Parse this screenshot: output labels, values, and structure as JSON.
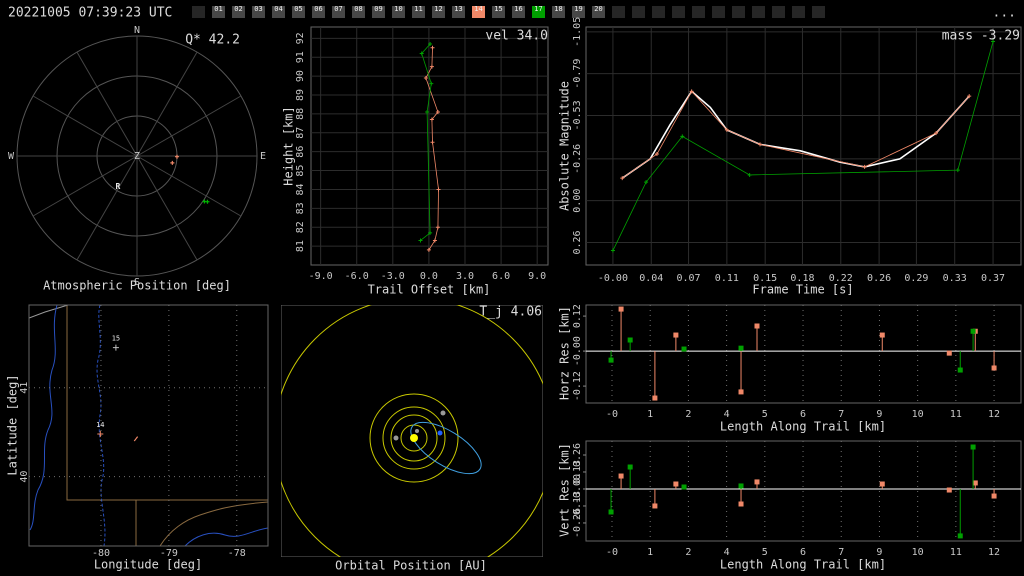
{
  "header": {
    "timestamp": "20221005 07:39:23 UTC",
    "menu": "...",
    "stations": [
      null,
      "01",
      "02",
      "03",
      "04",
      "05",
      "06",
      "07",
      "08",
      "09",
      "10",
      "11",
      "12",
      "13",
      "14",
      "15",
      "16",
      "17",
      "18",
      "19",
      "20",
      null,
      null,
      null,
      null,
      null,
      null,
      null,
      null,
      null,
      null,
      null
    ],
    "station_colors": [
      "#262626",
      "#474747",
      "#474747",
      "#474747",
      "#474747",
      "#474747",
      "#474747",
      "#474747",
      "#474747",
      "#474747",
      "#474747",
      "#474747",
      "#474747",
      "#474747",
      "#f08868",
      "#474747",
      "#474747",
      "#00a000",
      "#474747",
      "#474747",
      "#474747",
      "#262626",
      "#262626",
      "#262626",
      "#262626",
      "#262626",
      "#262626",
      "#262626",
      "#262626",
      "#262626",
      "#262626",
      "#262626"
    ]
  },
  "chart_data": [
    {
      "type": "polar",
      "title": "Atmospheric Position [deg]",
      "annotation": "Q* 42.2",
      "labels": {
        "north": "N",
        "east": "E",
        "south": "S",
        "west": "W",
        "zenith": "Z"
      },
      "radiant": {
        "label": "R",
        "az": 212,
        "zen": 27
      },
      "rlim": [
        0,
        90
      ],
      "rgrid": [
        30,
        60,
        90
      ],
      "series": [
        {
          "color": "#f08868",
          "az": [
            101,
            91
          ],
          "zen": [
            27,
            30
          ]
        },
        {
          "color": "#00b000",
          "az": [
            123,
            124
          ],
          "zen": [
            63,
            61
          ]
        }
      ]
    },
    {
      "type": "line",
      "xlabel": "Trail Offset [km]",
      "ylabel": "Height [km]",
      "annotation": "vel 34.0",
      "xlim": [
        -9.8,
        9.9
      ],
      "ylim": [
        80.0,
        92.6
      ],
      "grid": "solid",
      "xticks": [
        {
          "value": -9,
          "label": "-9.0"
        },
        {
          "value": -6,
          "label": "-6.0"
        },
        {
          "value": -3,
          "label": "-3.0"
        },
        {
          "value": 0,
          "label": "0.0"
        },
        {
          "value": 3,
          "label": "3.0"
        },
        {
          "value": 6,
          "label": "6.0"
        },
        {
          "value": 9,
          "label": "9.0"
        }
      ],
      "yticks": [
        81,
        82,
        83,
        84,
        85,
        86,
        87,
        88,
        89,
        90,
        91,
        92
      ],
      "series": [
        {
          "color": "#f08868",
          "markers": true,
          "x": [
            0.0,
            0.5,
            0.75,
            0.8,
            0.3,
            0.25,
            0.75,
            -0.25,
            0.25,
            0.3
          ],
          "values": [
            80.8,
            81.3,
            82.0,
            84.0,
            86.5,
            87.7,
            88.1,
            89.9,
            90.5,
            91.5
          ]
        },
        {
          "color": "#00a000",
          "markers": true,
          "x": [
            -0.7,
            0.1,
            -0.15,
            0.2,
            -0.6,
            0.1
          ],
          "values": [
            81.3,
            81.7,
            88.1,
            89.6,
            91.2,
            91.7
          ]
        }
      ]
    },
    {
      "type": "line",
      "xlabel": "Frame Time [s]",
      "ylabel": "Absolute Magnitude",
      "annotation": "mass -3.29",
      "xlim": [
        -0.026,
        0.394
      ],
      "ylim": [
        -1.08,
        0.4
      ],
      "y_inverted": true,
      "grid": "solid",
      "xticks": [
        {
          "value": 0,
          "label": "-0.00"
        },
        {
          "value": 0.037,
          "label": "0.04"
        },
        {
          "value": 0.073,
          "label": "0.07"
        },
        0.11,
        {
          "value": 0.147,
          "label": "0.15"
        },
        {
          "value": 0.183,
          "label": "0.18"
        },
        0.22,
        {
          "value": 0.257,
          "label": "0.26"
        },
        {
          "value": 0.293,
          "label": "0.29"
        },
        0.33,
        {
          "value": 0.367,
          "label": "0.37"
        }
      ],
      "yticks": [
        -1.05,
        -0.79,
        -0.53,
        -0.26,
        {
          "value": 0,
          "label": "0.00"
        },
        0.26
      ],
      "series": [
        {
          "color": "#00a000",
          "markers": true,
          "x": [
            0,
            0.032,
            0.067,
            0.132,
            0.333,
            0.367
          ],
          "values": [
            0.31,
            -0.115,
            -0.4,
            -0.16,
            -0.19,
            -0.99
          ]
        },
        {
          "color": "#ffffff",
          "markers": false,
          "x": [
            0.009,
            0.036,
            0.055,
            0.076,
            0.094,
            0.11,
            0.142,
            0.181,
            0.219,
            0.243,
            0.277,
            0.312,
            0.344
          ],
          "values": [
            -0.14,
            -0.26,
            -0.47,
            -0.68,
            -0.58,
            -0.44,
            -0.35,
            -0.31,
            -0.24,
            -0.21,
            -0.26,
            -0.42,
            -0.65
          ]
        },
        {
          "color": "#f08868",
          "markers": true,
          "x": [
            0.009,
            0.0425,
            0.076,
            0.11,
            0.142,
            0.243,
            0.312,
            0.344
          ],
          "values": [
            -0.14,
            -0.29,
            -0.68,
            -0.44,
            -0.35,
            -0.21,
            -0.42,
            -0.65
          ]
        }
      ]
    },
    {
      "type": "map",
      "xlabel": "Longitude [deg]",
      "ylabel": "Latitude [deg]",
      "xlim": [
        -81.06,
        -77.54
      ],
      "ylim": [
        39.22,
        41.93
      ],
      "grid": "dotted",
      "xticks": [
        -80,
        -79,
        -78
      ],
      "yticks": [
        40,
        41
      ],
      "stations": [
        {
          "label": "15",
          "lon": -79.78,
          "lat": 41.45,
          "color": "#c0c0c0"
        },
        {
          "label": "14",
          "lon": -80.01,
          "lat": 40.48,
          "color": "#f08868"
        }
      ],
      "track": {
        "color": "#f08868",
        "lon": [
          -79.51,
          -79.46
        ],
        "lat": [
          40.4,
          40.45
        ]
      }
    },
    {
      "type": "orbit",
      "xlabel": "Orbital Position [AU]",
      "annotation": "T_j 4.06"
    },
    {
      "type": "stem",
      "xlabel": "Length Along Trail [km]",
      "ylabel": "Horz Res [km]",
      "xlim": [
        -0.83,
        13.06
      ],
      "ylim": [
        -0.178,
        0.158
      ],
      "grid": "dotted",
      "xticks": [
        {
          "value": 0,
          "label": "-0"
        },
        {
          "value": 1.22,
          "label": "1"
        },
        {
          "value": 2.44,
          "label": "2"
        },
        {
          "value": 3.66,
          "label": "4"
        },
        {
          "value": 4.88,
          "label": "5"
        },
        {
          "value": 6.1,
          "label": "6"
        },
        {
          "value": 7.32,
          "label": "7"
        },
        {
          "value": 8.54,
          "label": "9"
        },
        {
          "value": 9.76,
          "label": "10"
        },
        {
          "value": 10.98,
          "label": "11"
        },
        {
          "value": 12.2,
          "label": "12"
        }
      ],
      "yticks": [
        0.12,
        {
          "value": 0,
          "label": "-0.00"
        },
        -0.12
      ],
      "series": [
        {
          "color": "#f08868",
          "x": [
            0.29,
            1.37,
            2.04,
            4.12,
            4.63,
            8.63,
            10.77,
            11.6,
            12.2
          ],
          "values": [
            0.144,
            -0.161,
            0.055,
            -0.14,
            0.086,
            0.055,
            -0.007,
            0.068,
            -0.058
          ]
        },
        {
          "color": "#00a000",
          "x": [
            -0.03,
            0.58,
            2.3,
            4.12,
            11.12,
            11.53
          ],
          "values": [
            -0.031,
            0.038,
            0.007,
            0.01,
            -0.065,
            0.068
          ]
        }
      ]
    },
    {
      "type": "stem",
      "xlabel": "Length Along Trail [km]",
      "ylabel": "Vert Res [km]",
      "xlim": [
        -0.83,
        13.06
      ],
      "ylim": [
        -0.398,
        0.367
      ],
      "grid": "dotted",
      "xticks": [
        {
          "value": 0,
          "label": "-0"
        },
        {
          "value": 1.22,
          "label": "1"
        },
        {
          "value": 2.44,
          "label": "2"
        },
        {
          "value": 3.66,
          "label": "4"
        },
        {
          "value": 4.88,
          "label": "5"
        },
        {
          "value": 6.1,
          "label": "6"
        },
        {
          "value": 7.32,
          "label": "7"
        },
        {
          "value": 8.54,
          "label": "9"
        },
        {
          "value": 9.76,
          "label": "10"
        },
        {
          "value": 10.98,
          "label": "11"
        },
        {
          "value": 12.2,
          "label": "12"
        }
      ],
      "yticks": [
        0.26,
        0.13,
        {
          "value": 0,
          "label": "-0.00"
        },
        -0.13,
        -0.26
      ],
      "series": [
        {
          "color": "#f08868",
          "x": [
            0.29,
            1.37,
            2.04,
            4.12,
            4.63,
            8.63,
            10.77,
            11.6,
            12.2
          ],
          "values": [
            0.099,
            -0.13,
            0.038,
            -0.115,
            0.054,
            0.038,
            -0.008,
            0.046,
            -0.054
          ]
        },
        {
          "color": "#00a000",
          "x": [
            -0.03,
            0.58,
            2.3,
            4.12,
            11.12,
            11.53
          ],
          "values": [
            -0.176,
            0.168,
            0.015,
            0.023,
            -0.359,
            0.321
          ]
        }
      ]
    }
  ]
}
